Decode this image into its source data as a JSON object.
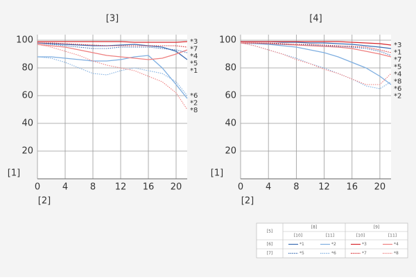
{
  "chart_data": [
    {
      "type": "line",
      "title": "[3]",
      "y_label": "[1]",
      "x_label": "[2]",
      "x": [
        0,
        2,
        4,
        6,
        8,
        10,
        12,
        14,
        16,
        18,
        20,
        21.6
      ],
      "xlim": [
        0,
        21.6
      ],
      "ylim": [
        0,
        100
      ],
      "xticks": [
        0,
        4,
        8,
        12,
        16,
        20
      ],
      "yticks": [
        20,
        40,
        60,
        80,
        100
      ],
      "grid": true,
      "series": [
        {
          "name": "*1",
          "color": "#3b6db3",
          "dashed": false,
          "values": [
            98,
            97.5,
            97,
            96.5,
            96,
            96,
            96.5,
            97,
            96,
            95,
            92,
            86
          ]
        },
        {
          "name": "*2",
          "color": "#7eaee0",
          "dashed": false,
          "values": [
            88,
            88,
            87,
            86,
            85,
            85,
            86,
            88,
            89,
            80,
            68,
            58
          ]
        },
        {
          "name": "*3",
          "color": "#d7262b",
          "dashed": false,
          "values": [
            99,
            99,
            99,
            99,
            99,
            99,
            99,
            98.5,
            98.5,
            98.5,
            98.5,
            99
          ]
        },
        {
          "name": "*4",
          "color": "#ee7f7f",
          "dashed": false,
          "values": [
            97,
            96,
            95,
            93,
            91,
            89,
            88,
            87,
            86,
            87,
            90,
            93
          ]
        },
        {
          "name": "*5",
          "color": "#3b6db3",
          "dashed": true,
          "values": [
            98,
            97,
            96,
            95,
            94,
            94,
            95,
            95,
            95,
            94,
            93,
            91
          ]
        },
        {
          "name": "*6",
          "color": "#7eaee0",
          "dashed": true,
          "values": [
            88,
            87,
            84,
            80,
            76,
            75,
            78,
            80,
            78,
            76,
            70,
            60
          ]
        },
        {
          "name": "*7",
          "color": "#d7262b",
          "dashed": true,
          "values": [
            98,
            98,
            97.5,
            97,
            96.5,
            96,
            96,
            96,
            96,
            96,
            96,
            95
          ]
        },
        {
          "name": "*8",
          "color": "#ee7f7f",
          "dashed": true,
          "values": [
            97,
            95,
            92,
            89,
            85,
            82,
            80,
            78,
            74,
            70,
            62,
            50
          ]
        }
      ]
    },
    {
      "type": "line",
      "title": "[4]",
      "y_label": "[1]",
      "x_label": "[2]",
      "x": [
        0,
        2,
        4,
        6,
        8,
        10,
        12,
        14,
        16,
        18,
        20,
        21.6
      ],
      "xlim": [
        0,
        21.6
      ],
      "ylim": [
        0,
        100
      ],
      "xticks": [
        0,
        4,
        8,
        12,
        16,
        20
      ],
      "yticks": [
        20,
        40,
        60,
        80,
        100
      ],
      "grid": true,
      "series": [
        {
          "name": "*1",
          "color": "#3b6db3",
          "dashed": false,
          "values": [
            99,
            99,
            99,
            98.5,
            98.5,
            98,
            98,
            97.5,
            97,
            96,
            95,
            94
          ]
        },
        {
          "name": "*2",
          "color": "#7eaee0",
          "dashed": false,
          "values": [
            98,
            97.5,
            97,
            96,
            95,
            93,
            91,
            88,
            84,
            80,
            74,
            68
          ]
        },
        {
          "name": "*3",
          "color": "#d7262b",
          "dashed": false,
          "values": [
            99,
            99,
            99,
            99,
            99,
            99,
            99,
            99,
            98.5,
            98,
            97.5,
            96.5
          ]
        },
        {
          "name": "*4",
          "color": "#ee7f7f",
          "dashed": false,
          "values": [
            98,
            98,
            97.5,
            97,
            96.5,
            96,
            95.5,
            95,
            94,
            92,
            90,
            88
          ]
        },
        {
          "name": "*5",
          "color": "#3b6db3",
          "dashed": true,
          "values": [
            98,
            98,
            97.5,
            97,
            97,
            96.5,
            96,
            95.5,
            95,
            94,
            92,
            89
          ]
        },
        {
          "name": "*6",
          "color": "#7eaee0",
          "dashed": true,
          "values": [
            98,
            96,
            93,
            90,
            87,
            83,
            80,
            76,
            72,
            67,
            65,
            70
          ]
        },
        {
          "name": "*7",
          "color": "#d7262b",
          "dashed": true,
          "values": [
            98,
            98,
            98,
            97.5,
            97,
            97,
            96.5,
            96,
            95.5,
            95,
            93,
            91
          ]
        },
        {
          "name": "*8",
          "color": "#ee7f7f",
          "dashed": true,
          "values": [
            98,
            96,
            93,
            90,
            86,
            83,
            79,
            76,
            72,
            68,
            68,
            76
          ]
        }
      ]
    }
  ],
  "legend_table": {
    "corner": "[5]",
    "groups": [
      "[8]",
      "[9]"
    ],
    "subheaders": [
      "[10]",
      "[11]",
      "[10]",
      "[11]"
    ],
    "rows": [
      "[6]",
      "[7]"
    ]
  }
}
